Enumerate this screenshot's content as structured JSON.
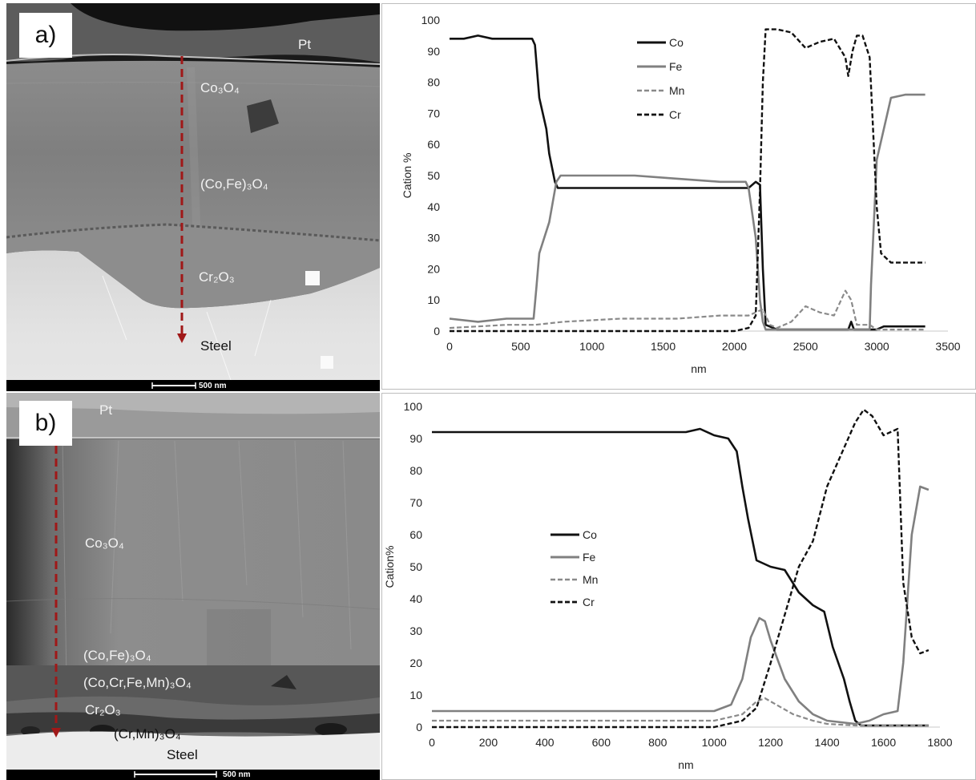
{
  "panels": [
    {
      "letter": "a)",
      "scalebar": "500 nm",
      "labels": {
        "pt": "Pt",
        "co3o4": "Co₃O₄",
        "cofe": "(Co,Fe)₃O₄",
        "cr2o3": "Cr₂O₃",
        "steel": "Steel"
      }
    },
    {
      "letter": "b)",
      "scalebar": "500 nm",
      "labels": {
        "pt": "Pt",
        "co3o4": "Co₃O₄",
        "cofe": "(Co,Fe)₃O₄",
        "cocrfemn": "(Co,Cr,Fe,Mn)₃O₄",
        "cr2o3": "Cr₂O₃",
        "crmn": "(Cr,Mn)₃O₄",
        "steel": "Steel"
      }
    }
  ],
  "colors": {
    "co": "#111111",
    "fe": "#808080",
    "mn": "#8a8a8a",
    "cr": "#111111",
    "arrow": "#a01818"
  },
  "chart_data": [
    {
      "type": "line",
      "xlabel": "nm",
      "ylabel": "Cation %",
      "xlim": [
        0,
        3500
      ],
      "ylim": [
        0,
        100
      ],
      "xticks": [
        0,
        500,
        1000,
        1500,
        2000,
        2500,
        3000,
        3500
      ],
      "yticks": [
        0,
        10,
        20,
        30,
        40,
        50,
        60,
        70,
        80,
        90,
        100
      ],
      "legend_position": "top-center",
      "series": [
        {
          "name": "Co",
          "style": "solid-black",
          "points": [
            [
              0,
              94
            ],
            [
              100,
              94
            ],
            [
              200,
              95
            ],
            [
              300,
              94
            ],
            [
              400,
              94
            ],
            [
              500,
              94
            ],
            [
              580,
              94
            ],
            [
              600,
              92
            ],
            [
              630,
              75
            ],
            [
              680,
              65
            ],
            [
              700,
              57
            ],
            [
              740,
              48
            ],
            [
              760,
              46
            ],
            [
              800,
              46
            ],
            [
              1000,
              46
            ],
            [
              1200,
              46
            ],
            [
              1500,
              46
            ],
            [
              1800,
              46
            ],
            [
              2000,
              46
            ],
            [
              2100,
              46
            ],
            [
              2150,
              48
            ],
            [
              2180,
              47
            ],
            [
              2200,
              20
            ],
            [
              2220,
              2
            ],
            [
              2300,
              0.5
            ],
            [
              2700,
              0.5
            ],
            [
              2800,
              0.5
            ],
            [
              2820,
              3
            ],
            [
              2840,
              0.5
            ],
            [
              3000,
              0.5
            ],
            [
              3050,
              1.5
            ],
            [
              3340,
              1.5
            ]
          ]
        },
        {
          "name": "Fe",
          "style": "solid-gray",
          "points": [
            [
              0,
              4
            ],
            [
              200,
              3
            ],
            [
              400,
              4
            ],
            [
              590,
              4
            ],
            [
              610,
              14
            ],
            [
              630,
              25
            ],
            [
              700,
              35
            ],
            [
              750,
              48
            ],
            [
              780,
              50
            ],
            [
              1000,
              50
            ],
            [
              1300,
              50
            ],
            [
              1600,
              49
            ],
            [
              1900,
              48
            ],
            [
              2080,
              48
            ],
            [
              2100,
              46
            ],
            [
              2150,
              30
            ],
            [
              2180,
              10
            ],
            [
              2200,
              3
            ],
            [
              2220,
              0.5
            ],
            [
              2500,
              0.5
            ],
            [
              2950,
              0.5
            ],
            [
              2960,
              15
            ],
            [
              2980,
              35
            ],
            [
              3000,
              55
            ],
            [
              3050,
              65
            ],
            [
              3100,
              75
            ],
            [
              3200,
              76
            ],
            [
              3340,
              76
            ]
          ]
        },
        {
          "name": "Mn",
          "style": "dashed-gray",
          "points": [
            [
              0,
              1
            ],
            [
              200,
              1.5
            ],
            [
              400,
              2
            ],
            [
              600,
              2
            ],
            [
              800,
              3
            ],
            [
              1200,
              4
            ],
            [
              1600,
              4
            ],
            [
              1900,
              5
            ],
            [
              2100,
              5
            ],
            [
              2200,
              7
            ],
            [
              2250,
              2
            ],
            [
              2300,
              1
            ],
            [
              2400,
              3
            ],
            [
              2500,
              8
            ],
            [
              2600,
              6
            ],
            [
              2700,
              5
            ],
            [
              2780,
              13
            ],
            [
              2820,
              10
            ],
            [
              2860,
              2
            ],
            [
              2950,
              2
            ],
            [
              3000,
              0.5
            ],
            [
              3340,
              0.5
            ]
          ]
        },
        {
          "name": "Cr",
          "style": "dashed-black",
          "points": [
            [
              0,
              0
            ],
            [
              1000,
              0
            ],
            [
              1800,
              0
            ],
            [
              2000,
              0
            ],
            [
              2100,
              1
            ],
            [
              2150,
              5
            ],
            [
              2180,
              45
            ],
            [
              2200,
              80
            ],
            [
              2220,
              97
            ],
            [
              2300,
              97
            ],
            [
              2400,
              96
            ],
            [
              2500,
              91
            ],
            [
              2600,
              93
            ],
            [
              2700,
              94
            ],
            [
              2780,
              88
            ],
            [
              2800,
              82
            ],
            [
              2830,
              90
            ],
            [
              2860,
              95
            ],
            [
              2900,
              95
            ],
            [
              2950,
              88
            ],
            [
              3000,
              40
            ],
            [
              3030,
              25
            ],
            [
              3100,
              22
            ],
            [
              3200,
              22
            ],
            [
              3340,
              22
            ]
          ]
        }
      ]
    },
    {
      "type": "line",
      "xlabel": "nm",
      "ylabel": "Cation%",
      "xlim": [
        0,
        1800
      ],
      "ylim": [
        0,
        100
      ],
      "xticks": [
        0,
        200,
        400,
        600,
        800,
        1000,
        1200,
        1400,
        1600,
        1800
      ],
      "yticks": [
        0,
        10,
        20,
        30,
        40,
        50,
        60,
        70,
        80,
        90,
        100
      ],
      "legend_position": "center-left",
      "series": [
        {
          "name": "Co",
          "style": "solid-black",
          "points": [
            [
              0,
              92
            ],
            [
              200,
              92
            ],
            [
              400,
              92
            ],
            [
              600,
              92
            ],
            [
              800,
              92
            ],
            [
              900,
              92
            ],
            [
              950,
              93
            ],
            [
              1000,
              91
            ],
            [
              1050,
              90
            ],
            [
              1080,
              86
            ],
            [
              1100,
              75
            ],
            [
              1120,
              65
            ],
            [
              1150,
              52
            ],
            [
              1200,
              50
            ],
            [
              1250,
              49
            ],
            [
              1300,
              42
            ],
            [
              1350,
              38
            ],
            [
              1390,
              36
            ],
            [
              1420,
              25
            ],
            [
              1460,
              15
            ],
            [
              1480,
              8
            ],
            [
              1500,
              2
            ],
            [
              1520,
              0.5
            ],
            [
              1760,
              0.5
            ]
          ]
        },
        {
          "name": "Fe",
          "style": "solid-gray",
          "points": [
            [
              0,
              5
            ],
            [
              200,
              5
            ],
            [
              400,
              5
            ],
            [
              600,
              5
            ],
            [
              800,
              5
            ],
            [
              1000,
              5
            ],
            [
              1060,
              7
            ],
            [
              1100,
              15
            ],
            [
              1130,
              28
            ],
            [
              1160,
              34
            ],
            [
              1180,
              33
            ],
            [
              1200,
              27
            ],
            [
              1250,
              15
            ],
            [
              1300,
              8
            ],
            [
              1350,
              4
            ],
            [
              1400,
              2
            ],
            [
              1500,
              1
            ],
            [
              1550,
              2
            ],
            [
              1600,
              4
            ],
            [
              1650,
              5
            ],
            [
              1670,
              20
            ],
            [
              1700,
              60
            ],
            [
              1730,
              75
            ],
            [
              1760,
              74
            ]
          ]
        },
        {
          "name": "Mn",
          "style": "dashed-gray",
          "points": [
            [
              0,
              2
            ],
            [
              400,
              2
            ],
            [
              800,
              2
            ],
            [
              1000,
              2
            ],
            [
              1100,
              4
            ],
            [
              1150,
              8
            ],
            [
              1180,
              9
            ],
            [
              1220,
              7
            ],
            [
              1280,
              4
            ],
            [
              1350,
              2
            ],
            [
              1400,
              1
            ],
            [
              1500,
              0.5
            ],
            [
              1700,
              0.5
            ],
            [
              1760,
              0.5
            ]
          ]
        },
        {
          "name": "Cr",
          "style": "dashed-black",
          "points": [
            [
              0,
              0
            ],
            [
              800,
              0
            ],
            [
              1000,
              0
            ],
            [
              1100,
              2
            ],
            [
              1150,
              6
            ],
            [
              1200,
              20
            ],
            [
              1250,
              35
            ],
            [
              1300,
              50
            ],
            [
              1350,
              58
            ],
            [
              1400,
              75
            ],
            [
              1450,
              85
            ],
            [
              1500,
              95
            ],
            [
              1530,
              99
            ],
            [
              1560,
              97
            ],
            [
              1600,
              91
            ],
            [
              1650,
              93
            ],
            [
              1670,
              45
            ],
            [
              1700,
              28
            ],
            [
              1730,
              23
            ],
            [
              1760,
              24
            ]
          ]
        }
      ]
    }
  ]
}
